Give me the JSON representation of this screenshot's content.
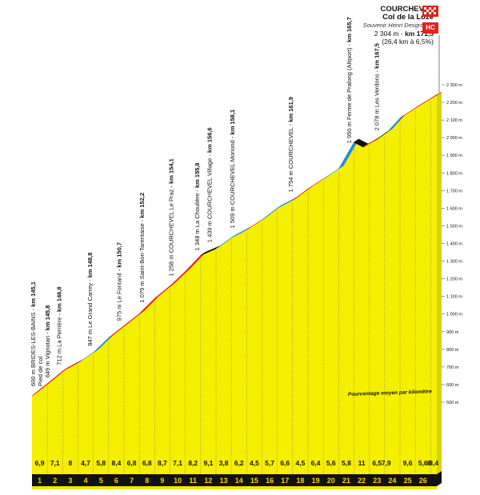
{
  "summit": {
    "name1": "COURCHEVEL",
    "name2": "Col de la Loze",
    "souvenir": "Souvenir Henri Desgrange",
    "alt": "2 304 m - ",
    "km": "km 171,5",
    "avg": "(26,4 km à 6,5%)",
    "category": "HC"
  },
  "note": "Pourcentage moyen par kilomètre",
  "waypoints": [
    {
      "km": 145.1,
      "text": "600 m BRIDES-LES-BAINS - ",
      "bold": "km 145,1"
    },
    {
      "km": 145.1,
      "text": "Pied de col",
      "bold": ""
    },
    {
      "km": 145.8,
      "text": "649 m Vignotan - ",
      "bold": "km 145,8"
    },
    {
      "km": 146.8,
      "text": "712 m La Perrière - ",
      "bold": "km 146,8"
    },
    {
      "km": 148.8,
      "text": "847 m Le Grand Carrey - ",
      "bold": "km 148,8"
    },
    {
      "km": 150.7,
      "text": "975 m Le Fontanil - ",
      "bold": "km 150,7"
    },
    {
      "km": 152.2,
      "text": "1 079 m Saint-Bon-Tarentaise - ",
      "bold": "km 152,2"
    },
    {
      "km": 154.1,
      "text": "1 258 m COURCHEVEL Le Praz - ",
      "bold": "km 154,1"
    },
    {
      "km": 155.8,
      "text": "1 348 m La Choulière - ",
      "bold": "km 155,8"
    },
    {
      "km": 156.6,
      "text": "1 439 m COURCHEVEL Village - ",
      "bold": "km 156,6"
    },
    {
      "km": 158.1,
      "text": "1 509 m COURCHEVEL Moriond - ",
      "bold": "km 158,1"
    },
    {
      "km": 161.9,
      "text": "1 754 m COURCHEVEL - ",
      "bold": "km 161,9"
    },
    {
      "km": 165.7,
      "text": "1 950 m Ferme de Pralong (Altiport) - ",
      "bold": "km 165,7"
    },
    {
      "km": 167.5,
      "text": "2 078 m Les Verdons - ",
      "bold": "km 167,5"
    }
  ],
  "chart_data": {
    "type": "area",
    "title": "COURCHEVEL Col de la Loze",
    "x_label": "",
    "y_label": "",
    "x_range_km": [
      0,
      26.4
    ],
    "ylim": [
      500,
      2300
    ],
    "y_ticks": [
      "500 m",
      "600 m",
      "700 m",
      "800 m",
      "900 m",
      "1 000 m",
      "1 100 m",
      "1 200 m",
      "1 300 m",
      "1 400 m",
      "1 500 m",
      "1 600 m",
      "1 700 m",
      "1 800 m",
      "1 900 m",
      "2 000 m",
      "2 100 m",
      "2 200 m",
      "2 300 m"
    ],
    "km_labels": [
      "1",
      "2",
      "3",
      "4",
      "5",
      "6",
      "7",
      "8",
      "9",
      "10",
      "11",
      "12",
      "13",
      "14",
      "15",
      "16",
      "17",
      "18",
      "19",
      "20",
      "21",
      "22",
      "23",
      "24",
      "25",
      "26"
    ],
    "gradients": [
      "6,9",
      "7,1",
      "8",
      "4,7",
      "5,8",
      "8,4",
      "6,8",
      "6,8",
      "8,7",
      "7,1",
      "8,2",
      "9,1",
      "3,8",
      "6,2",
      "4,5",
      "5,7",
      "6,6",
      "4,5",
      "6,4",
      "5,6",
      "5,8",
      "11",
      "6,5",
      "7,9",
      "9,6",
      "5,6",
      "8",
      "8,4"
    ],
    "gradient_positions_km": [
      0.5,
      1.5,
      2.5,
      3.5,
      4.5,
      5.5,
      6.5,
      7.5,
      8.5,
      9.5,
      10.5,
      11.5,
      12.5,
      13.5,
      14.5,
      15.5,
      16.5,
      17.5,
      18.5,
      19.5,
      20.5,
      21.5,
      22.5,
      23.1,
      24.5,
      25.5,
      25.9,
      26.2
    ],
    "profile": {
      "km": [
        0,
        1,
        2,
        3,
        4,
        5,
        6,
        7,
        8,
        9,
        10,
        11,
        12,
        13,
        14,
        15,
        16,
        17,
        18,
        19,
        20,
        21,
        21.6,
        22.4,
        23.2,
        24,
        25,
        26,
        26.4
      ],
      "elevation_m": [
        600,
        669,
        740,
        787,
        845,
        929,
        997,
        1065,
        1152,
        1223,
        1305,
        1396,
        1434,
        1496,
        1541,
        1598,
        1664,
        1709,
        1773,
        1829,
        1887,
        2037,
        2010,
        2049,
        2098,
        2175,
        2231,
        2284,
        2304
      ]
    },
    "segment_colors": [
      "red",
      "red",
      "red",
      "blue",
      "blue",
      "red",
      "red",
      "red",
      "red",
      "red",
      "red",
      "black",
      "blue",
      "blue",
      "red",
      "blue",
      "blue",
      "red",
      "red",
      "blue",
      "blue",
      "black",
      "red",
      "black",
      "blue",
      "red",
      "red",
      "red"
    ],
    "colors": {
      "fill": "#f5ef00",
      "red": "#e2231a",
      "blue": "#2a8bd8",
      "black": "#111111",
      "base": "#111111",
      "km_text": "#ffd400"
    }
  }
}
